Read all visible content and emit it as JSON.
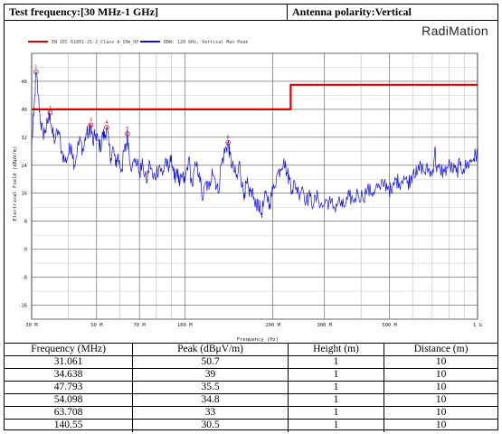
{
  "header": {
    "left": "Test frequency:[30 MHz-1 GHz]",
    "right": "Antenna polarity:Vertical",
    "brand": "RadiMation"
  },
  "colors": {
    "limit": "#e00000",
    "trace": "#1010ee",
    "marker": "#e00000",
    "grid": "#000000"
  },
  "chart_data": {
    "type": "line",
    "xscale": "log",
    "xlim": [
      30,
      1000
    ],
    "ylim": [
      -20,
      56
    ],
    "yticks": [
      -16,
      -8,
      0,
      8,
      16,
      24,
      32,
      40,
      48
    ],
    "xlabel": "Frequency (Hz)",
    "ylabel": "Electrical Field (dBµV/m)",
    "xtick_labels": [
      {
        "x": 30,
        "label": "30 M"
      },
      {
        "x": 50,
        "label": "50 M"
      },
      {
        "x": 70,
        "label": "70 M"
      },
      {
        "x": 100,
        "label": "100 M"
      },
      {
        "x": 200,
        "label": "200 M"
      },
      {
        "x": 300,
        "label": "300 M"
      },
      {
        "x": 500,
        "label": "500 M"
      },
      {
        "x": 1000,
        "label": "1 G"
      }
    ],
    "legend": [
      {
        "name": "EN IEC 61851-21-2_Class A_10m_QP",
        "color": "#e00000"
      },
      {
        "name": "RBW: 120 kHz, Vertical Max Peak",
        "color": "#1010ee"
      }
    ],
    "limit_line": [
      [
        30,
        40
      ],
      [
        230,
        40
      ],
      [
        230,
        47
      ],
      [
        1000,
        47
      ]
    ],
    "trace": [
      [
        30,
        30
      ],
      [
        30.5,
        38
      ],
      [
        31.061,
        50.7
      ],
      [
        31.6,
        44
      ],
      [
        32.2,
        36
      ],
      [
        32.8,
        33
      ],
      [
        33.4,
        34
      ],
      [
        34.0,
        36
      ],
      [
        34.638,
        39
      ],
      [
        35.3,
        33
      ],
      [
        36,
        31
      ],
      [
        37,
        34
      ],
      [
        38,
        28
      ],
      [
        39,
        25
      ],
      [
        40,
        27
      ],
      [
        41,
        30
      ],
      [
        42,
        24
      ],
      [
        43,
        29
      ],
      [
        44,
        31
      ],
      [
        45,
        28
      ],
      [
        46,
        33
      ],
      [
        47.1,
        33
      ],
      [
        47.793,
        35.5
      ],
      [
        48.6,
        30
      ],
      [
        49.5,
        33
      ],
      [
        50.5,
        31
      ],
      [
        51.5,
        29
      ],
      [
        52.5,
        33
      ],
      [
        53.3,
        32
      ],
      [
        54.098,
        34.8
      ],
      [
        55,
        30
      ],
      [
        56,
        26
      ],
      [
        57,
        29
      ],
      [
        58,
        24
      ],
      [
        59,
        27
      ],
      [
        60,
        24
      ],
      [
        61,
        23
      ],
      [
        62,
        28
      ],
      [
        63,
        29
      ],
      [
        63.708,
        33
      ],
      [
        64.5,
        28
      ],
      [
        66,
        23
      ],
      [
        68,
        26
      ],
      [
        70,
        22
      ],
      [
        72,
        24
      ],
      [
        74,
        19
      ],
      [
        76,
        25
      ],
      [
        78,
        20
      ],
      [
        80,
        22
      ],
      [
        82,
        24
      ],
      [
        84,
        21
      ],
      [
        86,
        26
      ],
      [
        88,
        22
      ],
      [
        90,
        27
      ],
      [
        92,
        20
      ],
      [
        94,
        23
      ],
      [
        96,
        18
      ],
      [
        98,
        21
      ],
      [
        100,
        19
      ],
      [
        103,
        26
      ],
      [
        106,
        18
      ],
      [
        109,
        24
      ],
      [
        112,
        22
      ],
      [
        115,
        14
      ],
      [
        118,
        19
      ],
      [
        121,
        17
      ],
      [
        124,
        23
      ],
      [
        127,
        20
      ],
      [
        130,
        16
      ],
      [
        133,
        24
      ],
      [
        136,
        27
      ],
      [
        138.5,
        29
      ],
      [
        140.55,
        30.5
      ],
      [
        142.5,
        27
      ],
      [
        145,
        24
      ],
      [
        148,
        22
      ],
      [
        151,
        20
      ],
      [
        154,
        25
      ],
      [
        157,
        18
      ],
      [
        160,
        16
      ],
      [
        163,
        19
      ],
      [
        166,
        15
      ],
      [
        170,
        17
      ],
      [
        174,
        12
      ],
      [
        178,
        14
      ],
      [
        182,
        10
      ],
      [
        186,
        13
      ],
      [
        190,
        16
      ],
      [
        195,
        13
      ],
      [
        200,
        17
      ],
      [
        206,
        21
      ],
      [
        212,
        23
      ],
      [
        218,
        26
      ],
      [
        223,
        22
      ],
      [
        228,
        20
      ],
      [
        233,
        17
      ],
      [
        238,
        19
      ],
      [
        245,
        16
      ],
      [
        252,
        18
      ],
      [
        260,
        14
      ],
      [
        268,
        15
      ],
      [
        276,
        13
      ],
      [
        285,
        15
      ],
      [
        295,
        12
      ],
      [
        305,
        14
      ],
      [
        315,
        13
      ],
      [
        325,
        12
      ],
      [
        335,
        14
      ],
      [
        345,
        12
      ],
      [
        355,
        13
      ],
      [
        365,
        15
      ],
      [
        375,
        14
      ],
      [
        390,
        16
      ],
      [
        405,
        15
      ],
      [
        420,
        17
      ],
      [
        435,
        16
      ],
      [
        450,
        18
      ],
      [
        465,
        17
      ],
      [
        480,
        19
      ],
      [
        495,
        18
      ],
      [
        510,
        16
      ],
      [
        525,
        20
      ],
      [
        540,
        19
      ],
      [
        560,
        21
      ],
      [
        575,
        19
      ],
      [
        590,
        20
      ],
      [
        605,
        23
      ],
      [
        620,
        21
      ],
      [
        640,
        24
      ],
      [
        660,
        22
      ],
      [
        680,
        23
      ],
      [
        700,
        21
      ],
      [
        715,
        29
      ],
      [
        725,
        22
      ],
      [
        745,
        23
      ],
      [
        770,
        22
      ],
      [
        795,
        24
      ],
      [
        820,
        23
      ],
      [
        845,
        22
      ],
      [
        870,
        24
      ],
      [
        895,
        23
      ],
      [
        920,
        24
      ],
      [
        945,
        25
      ],
      [
        970,
        26
      ],
      [
        985,
        27
      ],
      [
        1000,
        27
      ]
    ],
    "markers": [
      {
        "id": "1",
        "x": 31.061,
        "y": 50.7
      },
      {
        "id": "2",
        "x": 34.638,
        "y": 39
      },
      {
        "id": "3",
        "x": 47.793,
        "y": 35.5
      },
      {
        "id": "4",
        "x": 54.098,
        "y": 34.8
      },
      {
        "id": "5",
        "x": 63.708,
        "y": 33
      },
      {
        "id": "6",
        "x": 140.55,
        "y": 30.5
      }
    ]
  },
  "table": {
    "headers": [
      "Frequency (MHz)",
      "Peak (dBμV/m)",
      "Height (m)",
      "Distance (m)"
    ],
    "rows": [
      [
        "31.061",
        "50.7",
        "1",
        "10"
      ],
      [
        "34.638",
        "39",
        "1",
        "10"
      ],
      [
        "47.793",
        "35.5",
        "1",
        "10"
      ],
      [
        "54.098",
        "34.8",
        "1",
        "10"
      ],
      [
        "63.708",
        "33",
        "1",
        "10"
      ],
      [
        "140.55",
        "30.5",
        "1",
        "10"
      ]
    ]
  }
}
